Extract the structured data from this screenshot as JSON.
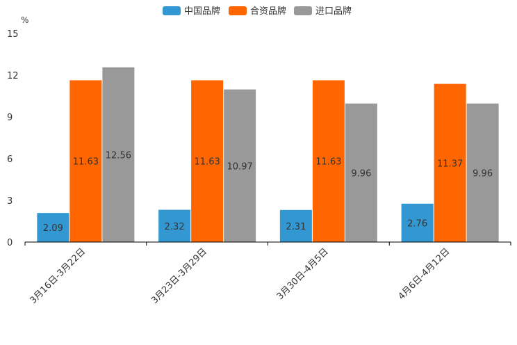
{
  "chart_data": {
    "type": "bar",
    "y_unit": "%",
    "ylim": [
      0,
      15
    ],
    "yticks": [
      "0",
      "3",
      "6",
      "9",
      "12",
      "15"
    ],
    "categories": [
      "3月16日-3月22日",
      "3月23日-3月29日",
      "3月30日-4月5日",
      "4月6日-4月12日"
    ],
    "series": [
      {
        "name": "中国品牌",
        "color": "#3398d1",
        "values": [
          2.09,
          2.32,
          2.31,
          2.76
        ],
        "labels": [
          "2.09",
          "2.32",
          "2.31",
          "2.76"
        ]
      },
      {
        "name": "合资品牌",
        "color": "#ff6600",
        "values": [
          11.63,
          11.63,
          11.63,
          11.37
        ],
        "labels": [
          "11.63",
          "11.63",
          "11.63",
          "11.37"
        ]
      },
      {
        "name": "进口品牌",
        "color": "#999999",
        "values": [
          12.56,
          10.97,
          9.96,
          9.96
        ],
        "labels": [
          "12.56",
          "10.97",
          "9.96",
          "9.96"
        ]
      }
    ],
    "legend_position": "top-center",
    "grid": false
  }
}
